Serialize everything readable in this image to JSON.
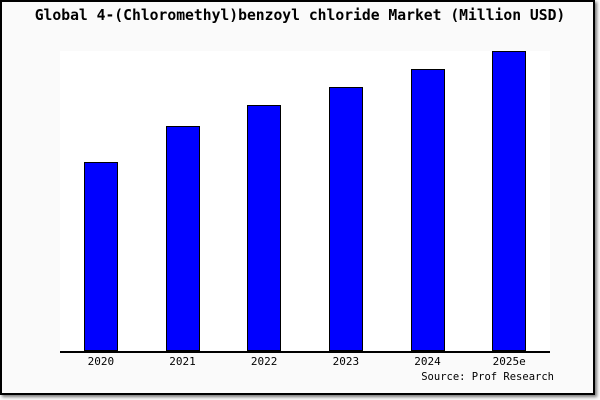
{
  "chart_data": {
    "type": "bar",
    "title": "Global 4-(Chloromethyl)benzoyl chloride Market (Million USD)",
    "categories": [
      "2020",
      "2021",
      "2022",
      "2023",
      "2024",
      "2025e"
    ],
    "values": [
      63,
      75,
      82,
      88,
      94,
      100
    ],
    "units": "relative height, % of tallest bar (no y-axis scale shown in chart)",
    "ylim": [
      0,
      100
    ],
    "xlabel": "",
    "ylabel": "",
    "grid": false,
    "legend": false,
    "source_note": "Source: Prof Research",
    "colors": {
      "bar_fill": "#0000FF",
      "bar_border": "#000000",
      "axis": "#000000",
      "plot_background": "#FFFFFF",
      "canvas_background": "#FAFAFA",
      "frame_border": "#000000",
      "text": "#000000"
    }
  }
}
